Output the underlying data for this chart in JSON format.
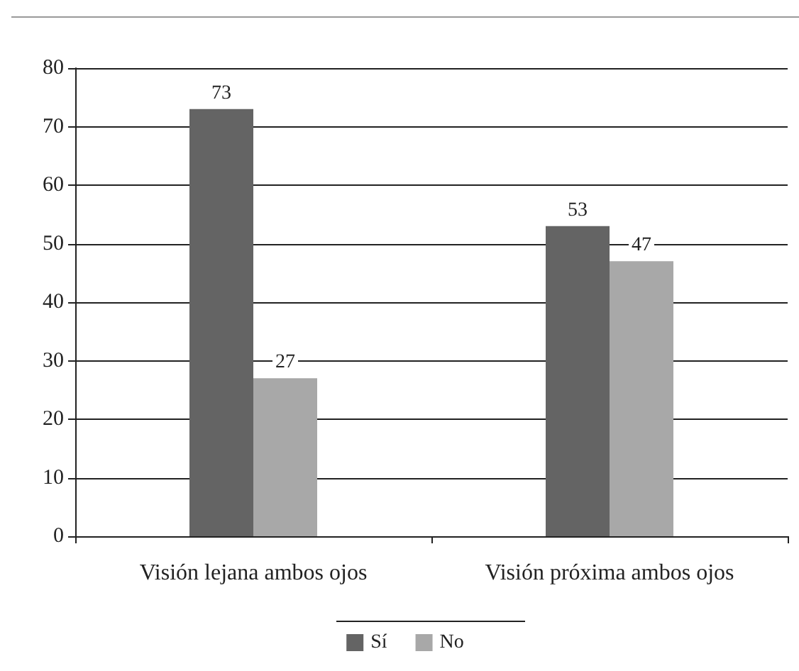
{
  "chart_data": {
    "type": "bar",
    "categories": [
      "Visión lejana ambos ojos",
      "Visión próxima ambos ojos"
    ],
    "series": [
      {
        "name": "Sí",
        "color": "#646464",
        "values": [
          73,
          53
        ]
      },
      {
        "name": "No",
        "color": "#a8a8a8",
        "values": [
          27,
          47
        ]
      }
    ],
    "ylim": [
      0,
      80
    ],
    "yticks": [
      0,
      10,
      20,
      30,
      40,
      50,
      60,
      70,
      80
    ],
    "grid": "y",
    "legend": "bottom",
    "data_labels": true
  }
}
